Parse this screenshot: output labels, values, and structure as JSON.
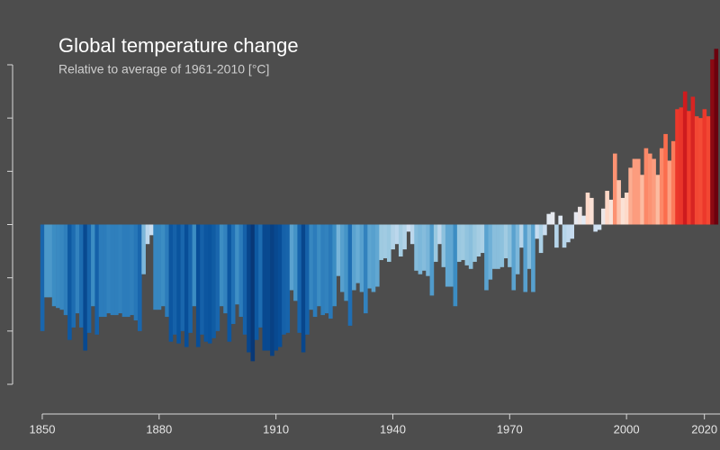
{
  "chart_data": {
    "type": "bar",
    "title": "Global temperature change",
    "subtitle": "Relative to average of 1961-2010  [°C]",
    "x": [
      1850,
      1851,
      1852,
      1853,
      1854,
      1855,
      1856,
      1857,
      1858,
      1859,
      1860,
      1861,
      1862,
      1863,
      1864,
      1865,
      1866,
      1867,
      1868,
      1869,
      1870,
      1871,
      1872,
      1873,
      1874,
      1875,
      1876,
      1877,
      1878,
      1879,
      1880,
      1881,
      1882,
      1883,
      1884,
      1885,
      1886,
      1887,
      1888,
      1889,
      1890,
      1891,
      1892,
      1893,
      1894,
      1895,
      1896,
      1897,
      1898,
      1899,
      1900,
      1901,
      1902,
      1903,
      1904,
      1905,
      1906,
      1907,
      1908,
      1909,
      1910,
      1911,
      1912,
      1913,
      1914,
      1915,
      1916,
      1917,
      1918,
      1919,
      1920,
      1921,
      1922,
      1923,
      1924,
      1925,
      1926,
      1927,
      1928,
      1929,
      1930,
      1931,
      1932,
      1933,
      1934,
      1935,
      1936,
      1937,
      1938,
      1939,
      1940,
      1941,
      1942,
      1943,
      1944,
      1945,
      1946,
      1947,
      1948,
      1949,
      1950,
      1951,
      1952,
      1953,
      1954,
      1955,
      1956,
      1957,
      1958,
      1959,
      1960,
      1961,
      1962,
      1963,
      1964,
      1965,
      1966,
      1967,
      1968,
      1969,
      1970,
      1971,
      1972,
      1973,
      1974,
      1975,
      1976,
      1977,
      1978,
      1979,
      1980,
      1981,
      1982,
      1983,
      1984,
      1985,
      1986,
      1987,
      1988,
      1989,
      1990,
      1991,
      1992,
      1993,
      1994,
      1995,
      1996,
      1997,
      1998,
      1999,
      2000,
      2001,
      2002,
      2003,
      2004,
      2005,
      2006,
      2007,
      2008,
      2009,
      2010,
      2011,
      2012,
      2013,
      2014,
      2015,
      2016,
      2017,
      2018,
      2019,
      2020,
      2021,
      2022,
      2023
    ],
    "values": [
      -0.6,
      -0.41,
      -0.41,
      -0.46,
      -0.47,
      -0.48,
      -0.51,
      -0.65,
      -0.58,
      -0.5,
      -0.58,
      -0.71,
      -0.61,
      -0.46,
      -0.62,
      -0.52,
      -0.52,
      -0.5,
      -0.51,
      -0.51,
      -0.5,
      -0.52,
      -0.52,
      -0.51,
      -0.54,
      -0.6,
      -0.28,
      -0.11,
      -0.06,
      -0.48,
      -0.48,
      -0.46,
      -0.52,
      -0.66,
      -0.62,
      -0.67,
      -0.6,
      -0.69,
      -0.61,
      -0.46,
      -0.69,
      -0.62,
      -0.66,
      -0.67,
      -0.64,
      -0.6,
      -0.46,
      -0.5,
      -0.66,
      -0.56,
      -0.45,
      -0.52,
      -0.62,
      -0.72,
      -0.77,
      -0.65,
      -0.58,
      -0.71,
      -0.71,
      -0.74,
      -0.71,
      -0.69,
      -0.62,
      -0.61,
      -0.37,
      -0.43,
      -0.61,
      -0.72,
      -0.62,
      -0.48,
      -0.52,
      -0.46,
      -0.51,
      -0.5,
      -0.53,
      -0.46,
      -0.29,
      -0.38,
      -0.43,
      -0.57,
      -0.37,
      -0.33,
      -0.38,
      -0.5,
      -0.36,
      -0.38,
      -0.35,
      -0.2,
      -0.19,
      -0.21,
      -0.14,
      -0.11,
      -0.18,
      -0.14,
      -0.04,
      -0.11,
      -0.26,
      -0.28,
      -0.26,
      -0.29,
      -0.4,
      -0.21,
      -0.11,
      -0.24,
      -0.35,
      -0.35,
      -0.46,
      -0.21,
      -0.2,
      -0.23,
      -0.25,
      -0.21,
      -0.18,
      -0.16,
      -0.37,
      -0.31,
      -0.25,
      -0.25,
      -0.24,
      -0.19,
      -0.24,
      -0.37,
      -0.28,
      -0.13,
      -0.38,
      -0.25,
      -0.38,
      -0.08,
      -0.16,
      -0.06,
      0.06,
      0.07,
      -0.13,
      0.05,
      -0.13,
      -0.1,
      -0.08,
      0.07,
      0.1,
      0.05,
      0.18,
      0.15,
      -0.04,
      -0.03,
      0.09,
      0.19,
      0.14,
      0.4,
      0.25,
      0.15,
      0.18,
      0.32,
      0.37,
      0.37,
      0.28,
      0.43,
      0.4,
      0.37,
      0.28,
      0.43,
      0.51,
      0.36,
      0.47,
      0.65,
      0.66,
      0.75,
      0.64,
      0.72,
      0.61,
      0.6,
      0.65,
      0.61,
      0.93,
      0.99
    ],
    "colormap": [
      "#08306b",
      "#08519c",
      "#2171b5",
      "#4292c6",
      "#6baed6",
      "#9ecae1",
      "#c6dbef",
      "#deebf7",
      "#fee0d2",
      "#fcbba1",
      "#fc9272",
      "#fb6a4a",
      "#ef3b2c",
      "#cb181d",
      "#a50f15",
      "#67000d"
    ],
    "clim": [
      -0.8,
      1.0
    ],
    "xlim": [
      1849.5,
      2024
    ],
    "xticks": [
      1850,
      1880,
      1910,
      1940,
      1970,
      2000,
      2020
    ],
    "ylim": [
      -0.9,
      0.9
    ],
    "yticks": [
      -0.9,
      -0.6,
      -0.3,
      0,
      0.3,
      0.6,
      0.9
    ]
  }
}
